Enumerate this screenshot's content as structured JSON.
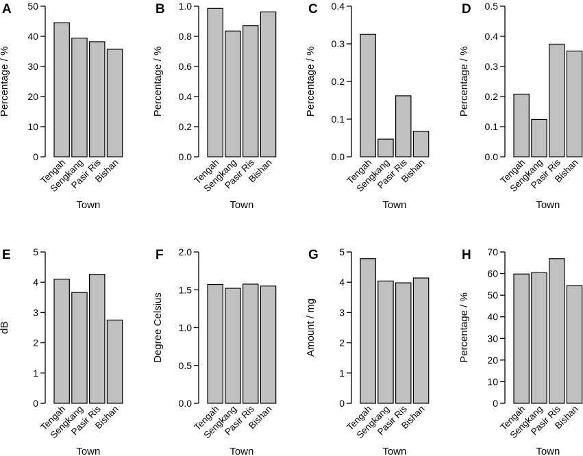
{
  "chart_data": [
    {
      "panel": "A",
      "type": "bar",
      "categories": [
        "Tengah",
        "Sengkang",
        "Pasir Ris",
        "Bishan"
      ],
      "values": [
        44.5,
        39.4,
        38.2,
        35.7
      ],
      "xlabel": "Town",
      "ylabel": "Percentage / %",
      "ylim": [
        0,
        50
      ],
      "yticks": [
        "0",
        "10",
        "20",
        "30",
        "40",
        "50"
      ]
    },
    {
      "panel": "B",
      "type": "bar",
      "categories": [
        "Tengah",
        "Sengkang",
        "Pasir Ris",
        "Bishan"
      ],
      "values": [
        0.985,
        0.835,
        0.87,
        0.962
      ],
      "xlabel": "Town",
      "ylabel": "Percentage / %",
      "ylim": [
        0,
        1.0
      ],
      "yticks": [
        "0.0",
        "0.2",
        "0.4",
        "0.6",
        "0.8",
        "1.0"
      ]
    },
    {
      "panel": "C",
      "type": "bar",
      "categories": [
        "Tengah",
        "Sengkang",
        "Pasir Ris",
        "Bishan"
      ],
      "values": [
        0.325,
        0.047,
        0.162,
        0.068
      ],
      "xlabel": "Town",
      "ylabel": "Percentage / %",
      "ylim": [
        0,
        0.4
      ],
      "yticks": [
        "0.0",
        "0.1",
        "0.2",
        "0.3",
        "0.4"
      ]
    },
    {
      "panel": "D",
      "type": "bar",
      "categories": [
        "Tengah",
        "Sengkang",
        "Pasir Ris",
        "Bishan"
      ],
      "values": [
        0.208,
        0.124,
        0.374,
        0.351
      ],
      "xlabel": "Town",
      "ylabel": "Percentage / %",
      "ylim": [
        0,
        0.5
      ],
      "yticks": [
        "0.0",
        "0.1",
        "0.2",
        "0.3",
        "0.4",
        "0.5"
      ]
    },
    {
      "panel": "E",
      "type": "bar",
      "categories": [
        "Tengah",
        "Sengkang",
        "Pasir Ris",
        "Bishan"
      ],
      "values": [
        4.1,
        3.66,
        4.26,
        2.75
      ],
      "xlabel": "Town",
      "ylabel": "dB",
      "ylim": [
        0,
        5
      ],
      "yticks": [
        "0",
        "1",
        "2",
        "3",
        "4",
        "5"
      ]
    },
    {
      "panel": "F",
      "type": "bar",
      "categories": [
        "Tengah",
        "Sengkang",
        "Pasir Ris",
        "Bishan"
      ],
      "values": [
        1.57,
        1.52,
        1.575,
        1.55
      ],
      "xlabel": "Town",
      "ylabel": "Degree Celsius",
      "ylim": [
        0,
        2.0
      ],
      "yticks": [
        "0.0",
        "0.5",
        "1.0",
        "1.5",
        "2.0"
      ]
    },
    {
      "panel": "G",
      "type": "bar",
      "categories": [
        "Tengah",
        "Sengkang",
        "Pasir Ris",
        "Bishan"
      ],
      "values": [
        4.78,
        4.04,
        3.98,
        4.14
      ],
      "xlabel": "Town",
      "ylabel": "Amount / mg",
      "ylim": [
        0,
        5
      ],
      "yticks": [
        "0",
        "1",
        "2",
        "3",
        "4",
        "5"
      ]
    },
    {
      "panel": "H",
      "type": "bar",
      "categories": [
        "Tengah",
        "Sengkang",
        "Pasir Ris",
        "Bishan"
      ],
      "values": [
        59.8,
        60.4,
        66.9,
        54.4
      ],
      "xlabel": "Town",
      "ylabel": "Percentage / %",
      "ylim": [
        0,
        70
      ],
      "yticks": [
        "0",
        "10",
        "20",
        "30",
        "40",
        "50",
        "60",
        "70"
      ]
    }
  ],
  "colors": {
    "bar_fill": "#c0c0c0",
    "bar_stroke": "#000000",
    "axis": "#000000"
  }
}
